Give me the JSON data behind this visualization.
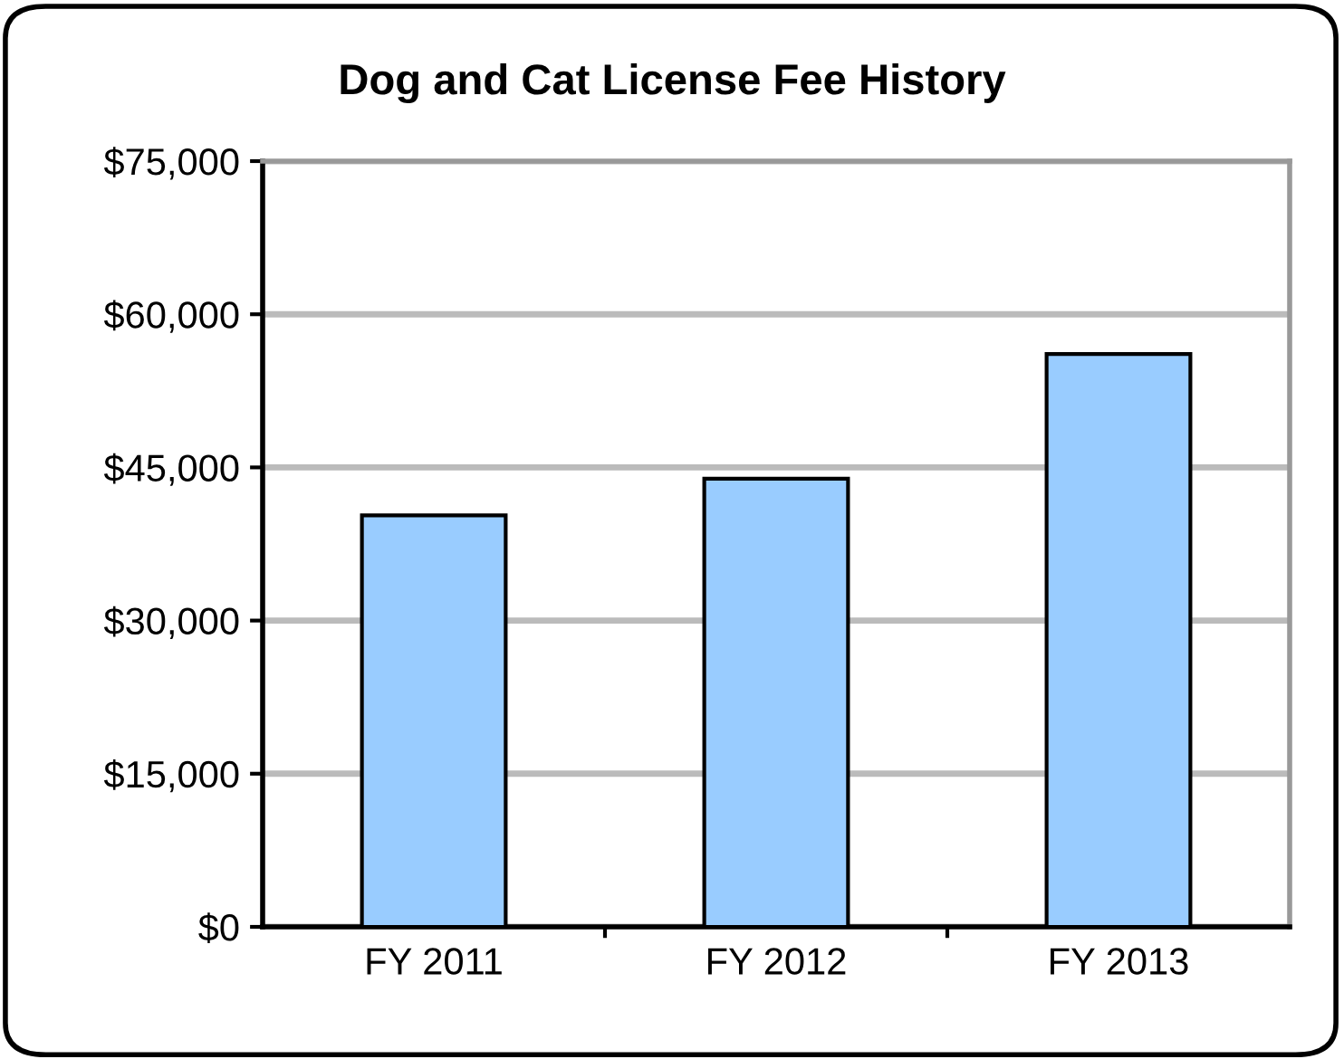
{
  "chart_data": {
    "type": "bar",
    "title": "Dog and Cat License Fee History",
    "categories": [
      "FY 2011",
      "FY 2012",
      "FY 2013"
    ],
    "values": [
      40300,
      43900,
      56100
    ],
    "color": "#99ccff",
    "ylim": [
      0,
      75000
    ],
    "yticks": [
      {
        "value": 0,
        "label": "$0"
      },
      {
        "value": 15000,
        "label": "$15,000"
      },
      {
        "value": 30000,
        "label": "$30,000"
      },
      {
        "value": 45000,
        "label": "$45,000"
      },
      {
        "value": 60000,
        "label": "$60,000"
      },
      {
        "value": 75000,
        "label": "$75,000"
      }
    ],
    "grid": "y",
    "legend": false
  }
}
